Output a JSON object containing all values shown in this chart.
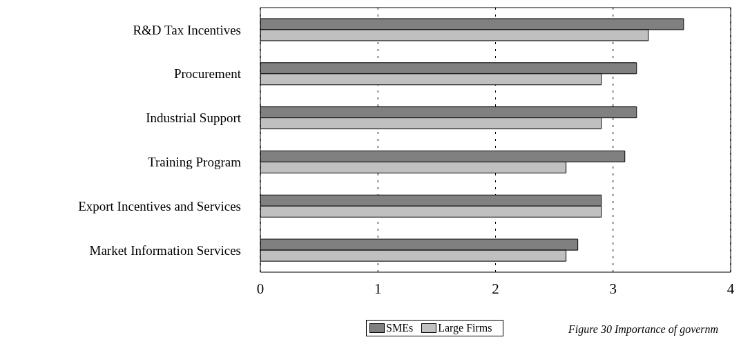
{
  "chart_data": {
    "type": "bar",
    "orientation": "horizontal",
    "categories": [
      "R&D Tax Incentives",
      "Procurement",
      "Industrial Support",
      "Training Program",
      "Export Incentives and Services",
      "Market Information Services"
    ],
    "series": [
      {
        "name": "SMEs",
        "color": "#808080",
        "values": [
          3.6,
          3.2,
          3.2,
          3.1,
          2.9,
          2.7
        ]
      },
      {
        "name": "Large Firms",
        "color": "#c0c0c0",
        "values": [
          3.3,
          2.9,
          2.9,
          2.6,
          2.9,
          2.6
        ]
      }
    ],
    "xlim": [
      0,
      4
    ],
    "xticks": [
      0,
      1,
      2,
      3,
      4
    ],
    "grid": "x",
    "legend": "bottom",
    "annotations": [
      "Figure 30 Importance of governm"
    ]
  }
}
